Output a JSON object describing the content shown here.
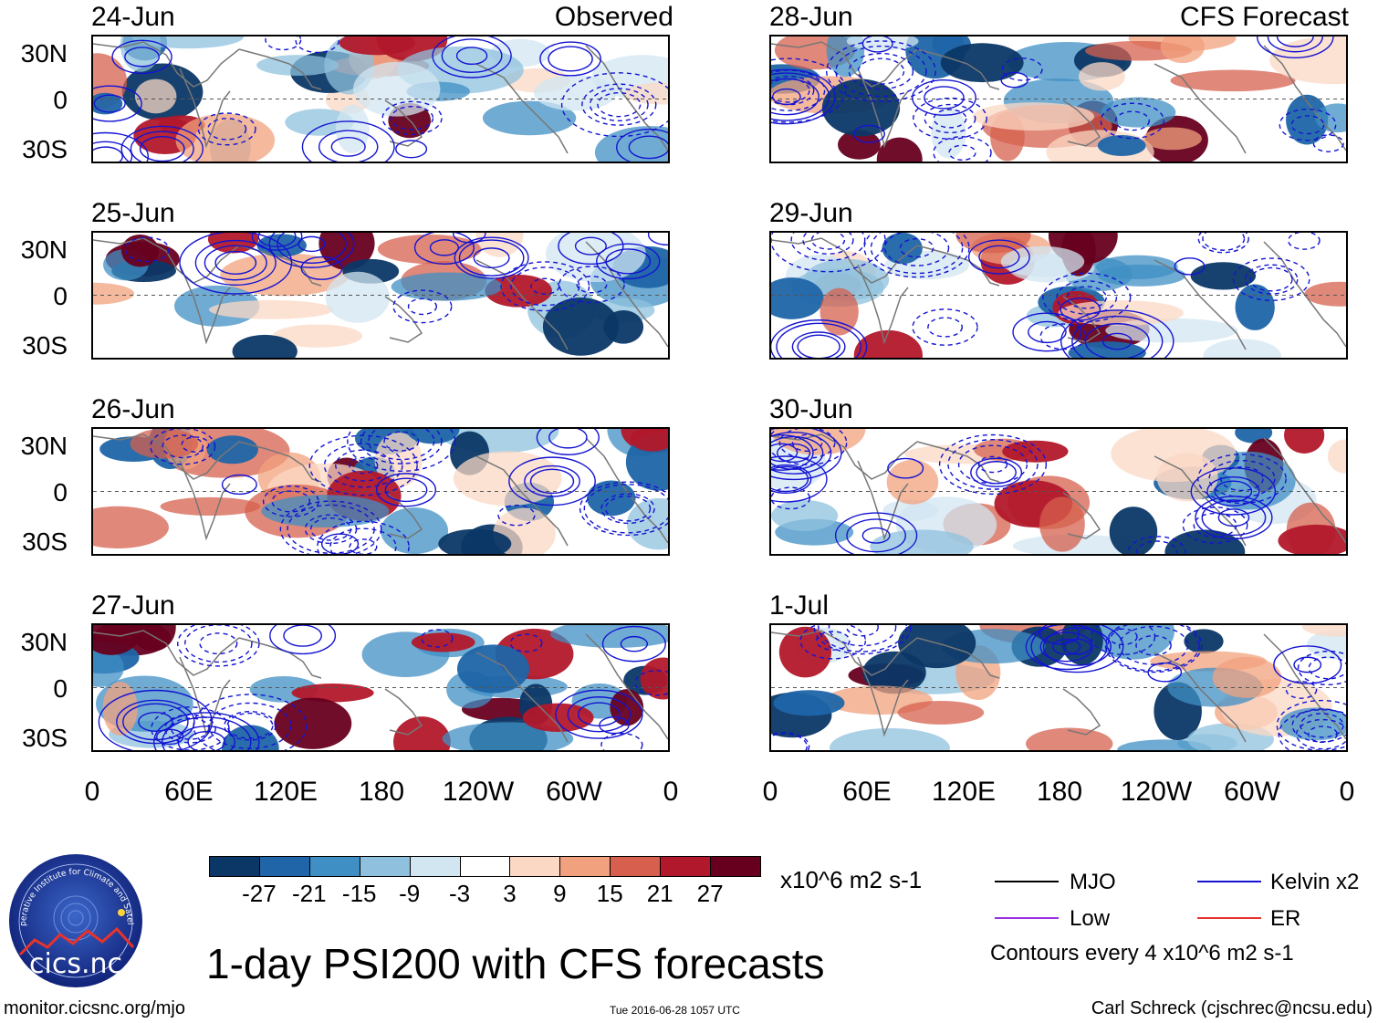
{
  "panels": [
    {
      "date": "24-Jun",
      "tag": "Observed"
    },
    {
      "date": "25-Jun",
      "tag": ""
    },
    {
      "date": "26-Jun",
      "tag": ""
    },
    {
      "date": "27-Jun",
      "tag": ""
    },
    {
      "date": "28-Jun",
      "tag": "CFS Forecast"
    },
    {
      "date": "29-Jun",
      "tag": ""
    },
    {
      "date": "30-Jun",
      "tag": ""
    },
    {
      "date": "1-Jul",
      "tag": ""
    }
  ],
  "lat_labels": [
    "30N",
    "0",
    "30S"
  ],
  "lon_labels": [
    "0",
    "60E",
    "120E",
    "180",
    "120W",
    "60W",
    "0"
  ],
  "colorbar": {
    "labels": [
      "-27",
      "-21",
      "-15",
      "-9",
      "-3",
      "3",
      "9",
      "15",
      "21",
      "27"
    ],
    "colors": [
      "#0b3766",
      "#1f65a8",
      "#3f8fc4",
      "#8fc1de",
      "#d2e6f1",
      "#ffffff",
      "#fbd8c4",
      "#f2a17e",
      "#d6604d",
      "#b2182b",
      "#67001f"
    ],
    "units": "x10^6 m2 s-1"
  },
  "legend": {
    "mjo": {
      "label": "MJO",
      "color": "#000000"
    },
    "kelvin": {
      "label": "Kelvin x2",
      "color": "#1414d2"
    },
    "low": {
      "label": "Low",
      "color": "#9b30e0"
    },
    "er": {
      "label": "ER",
      "color": "#e8332a"
    },
    "contours": "Contours every 4 x10^6 m2 s-1"
  },
  "title": "1-day PSI200 with CFS forecasts",
  "logo": {
    "name": "cics.nc",
    "ring": "Cooperative Institute for Climate and Satellites"
  },
  "footer": {
    "url": "monitor.cicsnc.org/mjo",
    "timestamp": "Tue 2016-06-28 1057 UTC",
    "author": "Carl Schreck (cjschrec@ncsu.edu)"
  }
}
